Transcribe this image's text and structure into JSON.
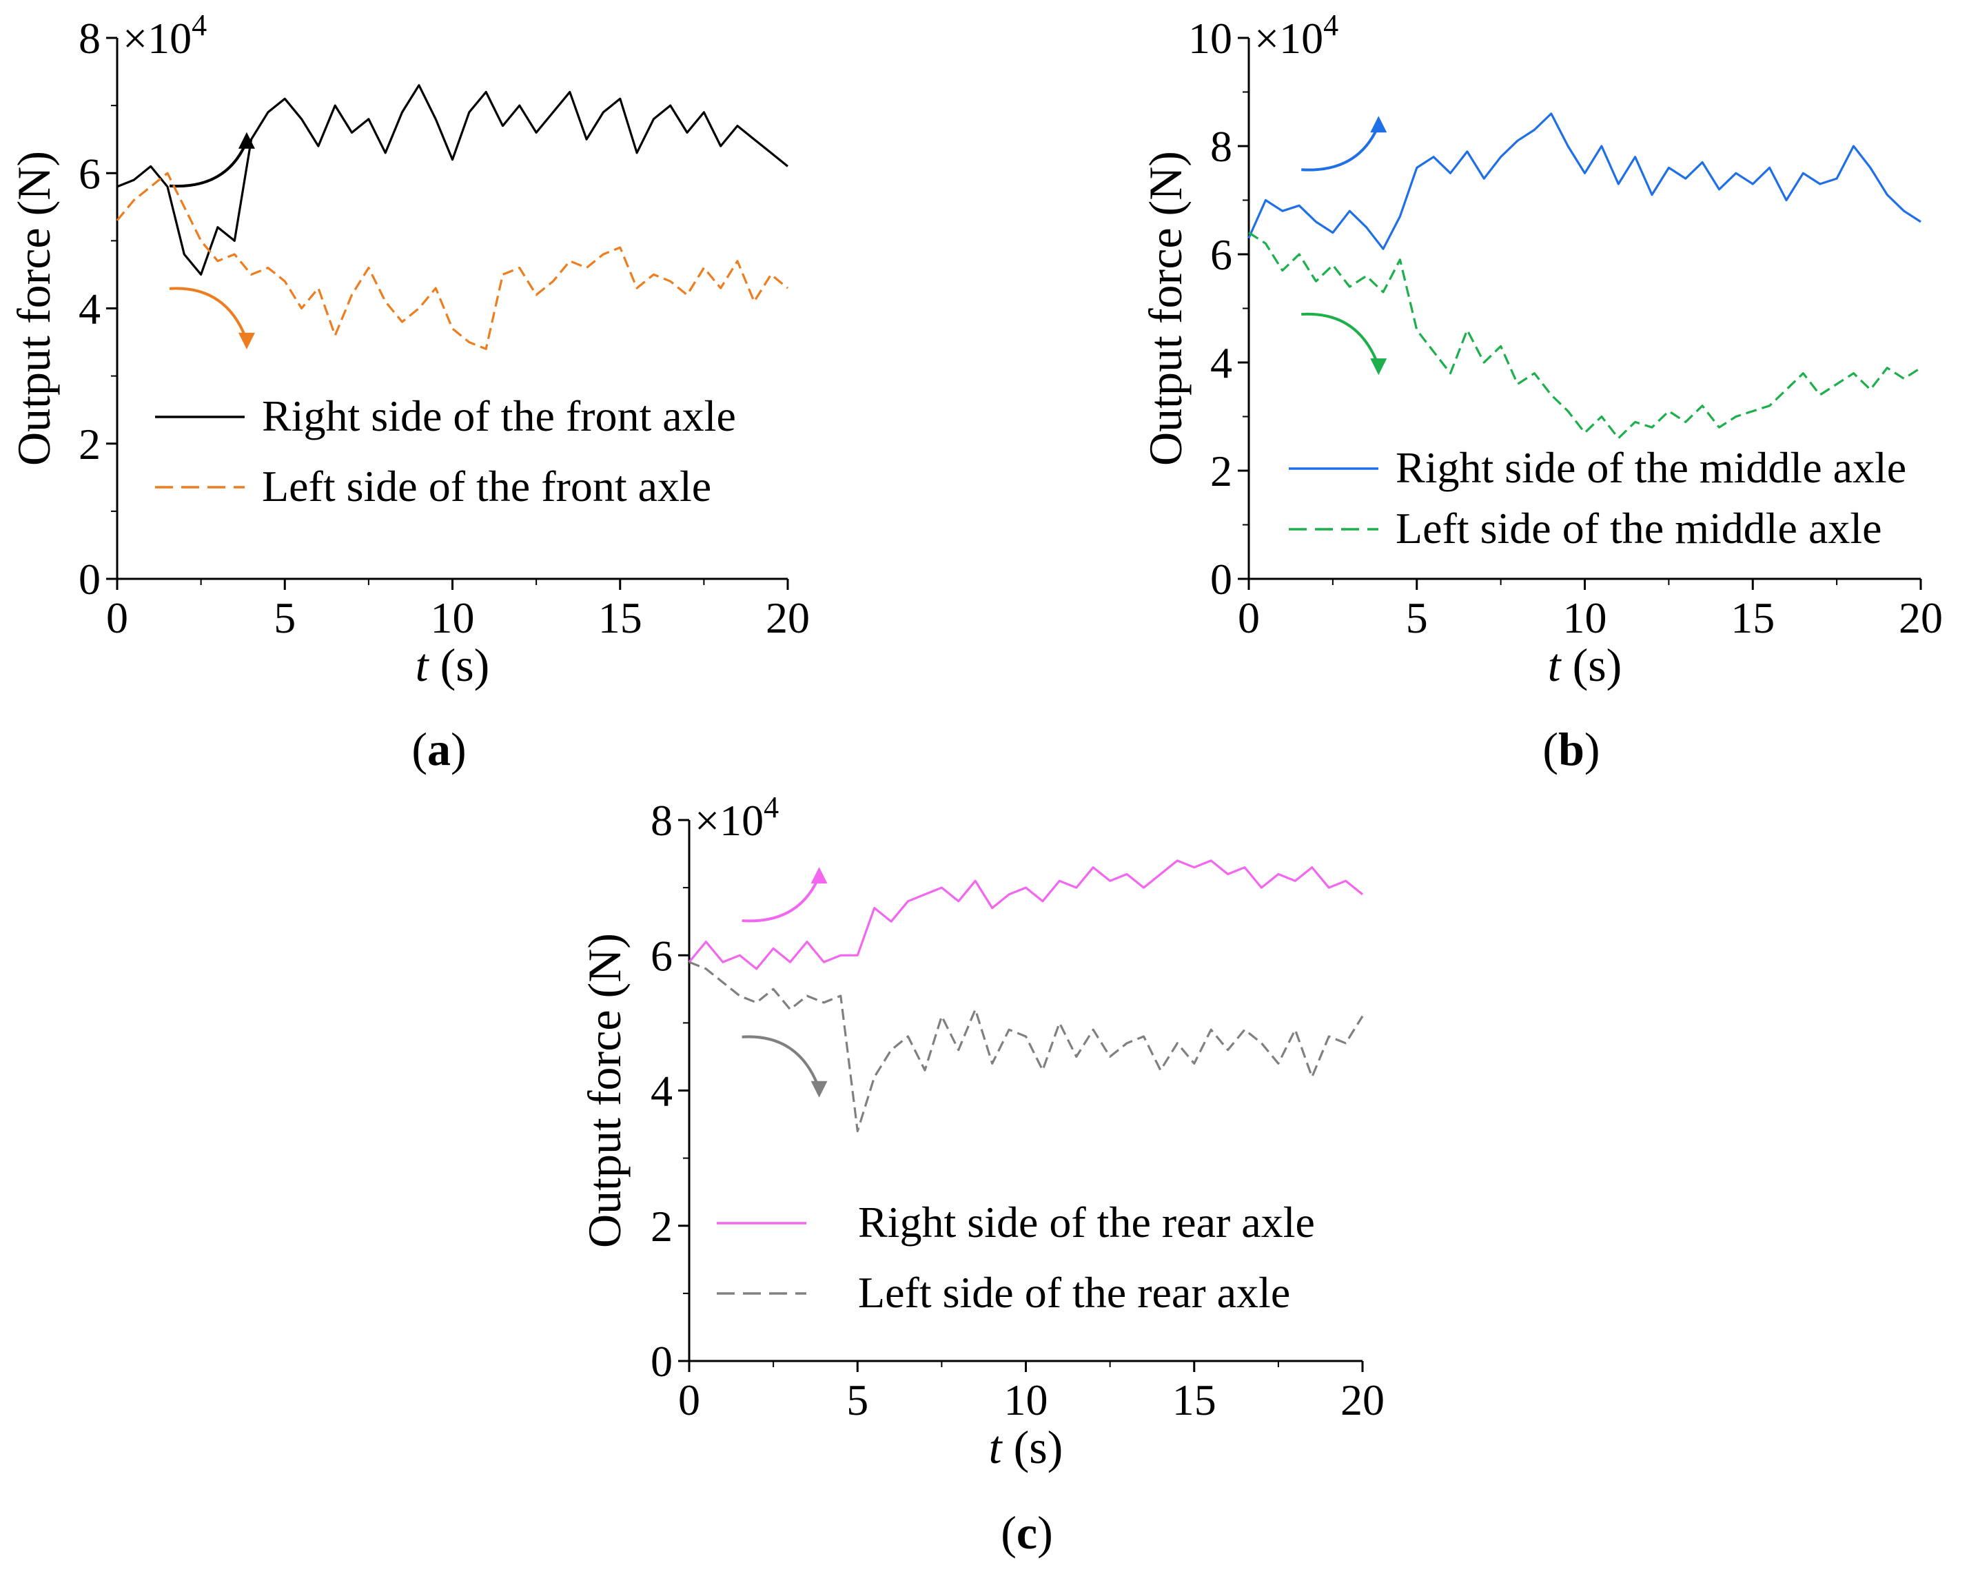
{
  "figure": {
    "panels": [
      "a",
      "b",
      "c"
    ]
  },
  "chart_data": [
    {
      "id": "a",
      "type": "line",
      "panel_label": "a",
      "title": "",
      "xlabel_var": "t",
      "xlabel_unit": "(s)",
      "ylabel": "Output force (N)",
      "y_multiplier_base": "×10",
      "y_multiplier_exp": "4",
      "xlim": [
        0,
        20
      ],
      "ylim": [
        0,
        8
      ],
      "x_ticks": [
        0,
        5,
        10,
        15,
        20
      ],
      "y_ticks": [
        0,
        2,
        4,
        6,
        8
      ],
      "legend_position": "lower-right",
      "x": [
        0,
        0.5,
        1,
        1.5,
        2,
        2.5,
        3,
        3.5,
        4,
        4.5,
        5,
        5.5,
        6,
        6.5,
        7,
        7.5,
        8,
        8.5,
        9,
        9.5,
        10,
        10.5,
        11,
        11.5,
        12,
        12.5,
        13,
        13.5,
        14,
        14.5,
        15,
        15.5,
        16,
        16.5,
        17,
        17.5,
        18,
        18.5,
        19,
        19.5,
        20
      ],
      "series": [
        {
          "name": "Right side of the front axle",
          "color": "#000000",
          "dash": "solid",
          "values": [
            5.8,
            5.9,
            6.1,
            5.8,
            4.8,
            4.5,
            5.2,
            5.0,
            6.5,
            6.9,
            7.1,
            6.8,
            6.4,
            7.0,
            6.6,
            6.8,
            6.3,
            6.9,
            7.3,
            6.8,
            6.2,
            6.9,
            7.2,
            6.7,
            7.0,
            6.6,
            6.9,
            7.2,
            6.5,
            6.9,
            7.1,
            6.3,
            6.8,
            7.0,
            6.6,
            6.9,
            6.4,
            6.7,
            6.5,
            6.3,
            6.1
          ]
        },
        {
          "name": "Left side of the front axle",
          "color": "#ED7D1E",
          "dash": "dashed",
          "values": [
            5.3,
            5.6,
            5.8,
            6.0,
            5.5,
            5.0,
            4.7,
            4.8,
            4.5,
            4.6,
            4.4,
            4.0,
            4.3,
            3.6,
            4.2,
            4.6,
            4.1,
            3.8,
            4.0,
            4.3,
            3.7,
            3.5,
            3.4,
            4.5,
            4.6,
            4.2,
            4.4,
            4.7,
            4.6,
            4.8,
            4.9,
            4.3,
            4.5,
            4.4,
            4.2,
            4.6,
            4.3,
            4.7,
            4.1,
            4.5,
            4.3
          ]
        }
      ]
    },
    {
      "id": "b",
      "type": "line",
      "panel_label": "b",
      "title": "",
      "xlabel_var": "t",
      "xlabel_unit": "(s)",
      "ylabel": "Output force (N)",
      "y_multiplier_base": "×10",
      "y_multiplier_exp": "4",
      "xlim": [
        0,
        20
      ],
      "ylim": [
        0,
        10
      ],
      "x_ticks": [
        0,
        5,
        10,
        15,
        20
      ],
      "y_ticks": [
        0,
        2,
        4,
        6,
        8,
        10
      ],
      "legend_position": "lower-right",
      "x": [
        0,
        0.5,
        1,
        1.5,
        2,
        2.5,
        3,
        3.5,
        4,
        4.5,
        5,
        5.5,
        6,
        6.5,
        7,
        7.5,
        8,
        8.5,
        9,
        9.5,
        10,
        10.5,
        11,
        11.5,
        12,
        12.5,
        13,
        13.5,
        14,
        14.5,
        15,
        15.5,
        16,
        16.5,
        17,
        17.5,
        18,
        18.5,
        19,
        19.5,
        20
      ],
      "series": [
        {
          "name": "Right side of the middle axle",
          "color": "#1F6FE6",
          "dash": "solid",
          "values": [
            6.3,
            7.0,
            6.8,
            6.9,
            6.6,
            6.4,
            6.8,
            6.5,
            6.1,
            6.7,
            7.6,
            7.8,
            7.5,
            7.9,
            7.4,
            7.8,
            8.1,
            8.3,
            8.6,
            8.0,
            7.5,
            8.0,
            7.3,
            7.8,
            7.1,
            7.6,
            7.4,
            7.7,
            7.2,
            7.5,
            7.3,
            7.6,
            7.0,
            7.5,
            7.3,
            7.4,
            8.0,
            7.6,
            7.1,
            6.8,
            6.6
          ]
        },
        {
          "name": "Left side of the middle axle",
          "color": "#1DAF4B",
          "dash": "dashed",
          "values": [
            6.4,
            6.2,
            5.7,
            6.0,
            5.5,
            5.8,
            5.4,
            5.6,
            5.3,
            5.9,
            4.6,
            4.2,
            3.8,
            4.6,
            4.0,
            4.3,
            3.6,
            3.8,
            3.4,
            3.1,
            2.7,
            3.0,
            2.6,
            2.9,
            2.8,
            3.1,
            2.9,
            3.2,
            2.8,
            3.0,
            3.1,
            3.2,
            3.5,
            3.8,
            3.4,
            3.6,
            3.8,
            3.5,
            3.9,
            3.7,
            3.9
          ]
        }
      ]
    },
    {
      "id": "c",
      "type": "line",
      "panel_label": "c",
      "title": "",
      "xlabel_var": "t",
      "xlabel_unit": "(s)",
      "ylabel": "Output force (N)",
      "y_multiplier_base": "×10",
      "y_multiplier_exp": "4",
      "xlim": [
        0,
        20
      ],
      "ylim": [
        0,
        8
      ],
      "x_ticks": [
        0,
        5,
        10,
        15,
        20
      ],
      "y_ticks": [
        0,
        2,
        4,
        6,
        8
      ],
      "legend_position": "lower-right",
      "x": [
        0,
        0.5,
        1,
        1.5,
        2,
        2.5,
        3,
        3.5,
        4,
        4.5,
        5,
        5.5,
        6,
        6.5,
        7,
        7.5,
        8,
        8.5,
        9,
        9.5,
        10,
        10.5,
        11,
        11.5,
        12,
        12.5,
        13,
        13.5,
        14,
        14.5,
        15,
        15.5,
        16,
        16.5,
        17,
        17.5,
        18,
        18.5,
        19,
        19.5,
        20
      ],
      "series": [
        {
          "name": "Right side of the rear axle",
          "color": "#F266F0",
          "dash": "solid",
          "values": [
            5.9,
            6.2,
            5.9,
            6.0,
            5.8,
            6.1,
            5.9,
            6.2,
            5.9,
            6.0,
            6.0,
            6.7,
            6.5,
            6.8,
            6.9,
            7.0,
            6.8,
            7.1,
            6.7,
            6.9,
            7.0,
            6.8,
            7.1,
            7.0,
            7.3,
            7.1,
            7.2,
            7.0,
            7.2,
            7.4,
            7.3,
            7.4,
            7.2,
            7.3,
            7.0,
            7.2,
            7.1,
            7.3,
            7.0,
            7.1,
            6.9
          ]
        },
        {
          "name": "Left side of the rear axle",
          "color": "#808080",
          "dash": "dashed",
          "values": [
            5.9,
            5.8,
            5.6,
            5.4,
            5.3,
            5.5,
            5.2,
            5.4,
            5.3,
            5.4,
            3.4,
            4.2,
            4.6,
            4.8,
            4.3,
            5.1,
            4.6,
            5.2,
            4.4,
            4.9,
            4.8,
            4.3,
            5.0,
            4.5,
            4.9,
            4.5,
            4.7,
            4.8,
            4.3,
            4.7,
            4.4,
            4.9,
            4.6,
            4.9,
            4.7,
            4.4,
            4.9,
            4.2,
            4.8,
            4.7,
            5.1
          ]
        }
      ]
    }
  ]
}
